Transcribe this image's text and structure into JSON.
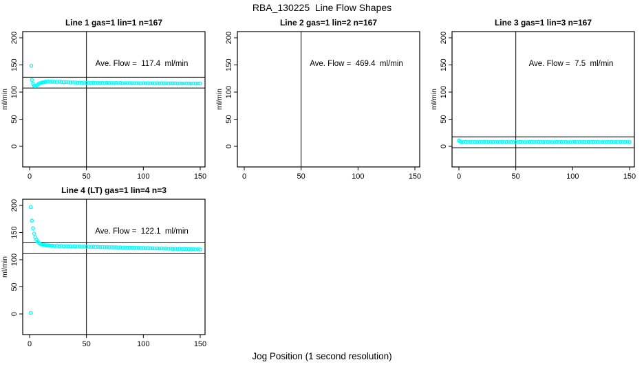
{
  "figure": {
    "title": "RBA_130225  Line Flow Shapes",
    "xlabel": "Jog Position (1 second resolution)",
    "background": "#ffffff",
    "marker_color": "#00FFFF",
    "axis_color": "#000000"
  },
  "chart_data": [
    {
      "type": "scatter",
      "title": "Line 1 gas=1 lin=1 n=167",
      "annotation": "Ave. Flow =  117.4  ml/min",
      "ave_flow": 117.4,
      "ylabel": "ml/min",
      "xlim": [
        0,
        150
      ],
      "ylim": [
        0,
        200
      ],
      "xticks": [
        0,
        50,
        100,
        150
      ],
      "yticks": [
        0,
        50,
        100,
        150,
        200
      ],
      "vline_x": 50,
      "hlines": [
        127.4,
        107.4
      ],
      "points": [
        [
          1.5,
          148.5
        ],
        [
          2,
          122.5
        ],
        [
          3,
          115
        ],
        [
          4,
          111.5
        ],
        [
          5,
          111
        ],
        [
          6,
          112
        ],
        [
          7,
          113.5
        ],
        [
          8,
          115
        ],
        [
          9,
          116.2
        ],
        [
          10,
          117
        ],
        [
          11,
          117.6
        ],
        [
          12,
          118
        ],
        [
          13,
          118.4
        ],
        [
          14,
          119
        ],
        [
          16,
          119.4
        ],
        [
          18,
          119
        ],
        [
          20,
          119.5
        ],
        [
          22,
          119
        ],
        [
          24,
          118.6
        ],
        [
          26,
          119.1
        ],
        [
          28,
          118.6
        ],
        [
          30,
          118.2
        ],
        [
          32,
          118.6
        ],
        [
          34,
          118.1
        ],
        [
          36,
          117.7
        ],
        [
          38,
          118.1
        ],
        [
          40,
          117.6
        ],
        [
          42,
          117.2
        ],
        [
          44,
          117.6
        ],
        [
          46,
          117.1
        ],
        [
          48,
          117.5
        ],
        [
          50,
          117
        ],
        [
          52,
          117.3
        ],
        [
          54,
          116.8
        ],
        [
          56,
          117.2
        ],
        [
          58,
          116.6
        ],
        [
          60,
          117
        ],
        [
          62,
          116.5
        ],
        [
          64,
          117
        ],
        [
          66,
          116.4
        ],
        [
          68,
          116.9
        ],
        [
          70,
          116.5
        ],
        [
          72,
          116.8
        ],
        [
          74,
          116.3
        ],
        [
          76,
          116.8
        ],
        [
          78,
          116.4
        ],
        [
          80,
          116.7
        ],
        [
          82,
          116.2
        ],
        [
          84,
          116.6
        ],
        [
          86,
          116.3
        ],
        [
          88,
          116.7
        ],
        [
          90,
          116.2
        ],
        [
          92,
          116.5
        ],
        [
          94,
          116.1
        ],
        [
          96,
          116.5
        ],
        [
          98,
          116
        ],
        [
          100,
          116.4
        ],
        [
          102,
          116.1
        ],
        [
          104,
          116.5
        ],
        [
          106,
          116
        ],
        [
          108,
          116.3
        ],
        [
          110,
          116
        ],
        [
          112,
          116.4
        ],
        [
          114,
          115.9
        ],
        [
          116,
          116.3
        ],
        [
          118,
          116
        ],
        [
          120,
          116.2
        ],
        [
          122,
          115.8
        ],
        [
          124,
          116.2
        ],
        [
          126,
          115.9
        ],
        [
          128,
          116.1
        ],
        [
          130,
          115.8
        ],
        [
          132,
          116.1
        ],
        [
          134,
          115.7
        ],
        [
          136,
          116
        ],
        [
          138,
          115.8
        ],
        [
          140,
          116
        ],
        [
          142,
          115.6
        ],
        [
          144,
          116
        ],
        [
          146,
          115.7
        ],
        [
          148,
          115.9
        ],
        [
          150,
          115.8
        ]
      ]
    },
    {
      "type": "scatter",
      "title": "Line 2 gas=1 lin=2 n=167",
      "annotation": "Ave. Flow =  469.4  ml/min",
      "ave_flow": 469.4,
      "ylabel": "ml/min",
      "xlim": [
        0,
        150
      ],
      "ylim": [
        0,
        200
      ],
      "xticks": [
        0,
        50,
        100,
        150
      ],
      "yticks": [
        0,
        50,
        100,
        150,
        200
      ],
      "vline_x": 50,
      "hlines": [],
      "points": []
    },
    {
      "type": "scatter",
      "title": "Line 3 gas=1 lin=3 n=167",
      "annotation": "Ave. Flow =  7.5  ml/min",
      "ave_flow": 7.5,
      "ylabel": "ml/min",
      "xlim": [
        0,
        150
      ],
      "ylim": [
        0,
        200
      ],
      "xticks": [
        0,
        50,
        100,
        150
      ],
      "yticks": [
        0,
        50,
        100,
        150,
        200
      ],
      "vline_x": 50,
      "hlines": [
        17.5,
        -2.5
      ],
      "points": [
        [
          0,
          10.5
        ],
        [
          1,
          9.2
        ],
        [
          2,
          8.1
        ],
        [
          4,
          7.8
        ],
        [
          6,
          8.2
        ],
        [
          8,
          7.6
        ],
        [
          10,
          8
        ],
        [
          12,
          7.7
        ],
        [
          14,
          8.1
        ],
        [
          16,
          7.6
        ],
        [
          18,
          8
        ],
        [
          20,
          7.8
        ],
        [
          22,
          8.2
        ],
        [
          24,
          7.6
        ],
        [
          26,
          8
        ],
        [
          28,
          7.7
        ],
        [
          30,
          8.1
        ],
        [
          32,
          7.6
        ],
        [
          34,
          8
        ],
        [
          36,
          7.8
        ],
        [
          38,
          8.1
        ],
        [
          40,
          7.6
        ],
        [
          42,
          8
        ],
        [
          44,
          7.7
        ],
        [
          46,
          8.1
        ],
        [
          48,
          7.6
        ],
        [
          50,
          8
        ],
        [
          52,
          7.8
        ],
        [
          54,
          8.2
        ],
        [
          56,
          7.6
        ],
        [
          58,
          8
        ],
        [
          60,
          7.7
        ],
        [
          62,
          8.1
        ],
        [
          64,
          7.6
        ],
        [
          66,
          8
        ],
        [
          68,
          7.8
        ],
        [
          70,
          8.1
        ],
        [
          72,
          7.6
        ],
        [
          74,
          8
        ],
        [
          76,
          7.7
        ],
        [
          78,
          8.1
        ],
        [
          80,
          7.6
        ],
        [
          82,
          8
        ],
        [
          84,
          7.8
        ],
        [
          86,
          8.2
        ],
        [
          88,
          7.6
        ],
        [
          90,
          8
        ],
        [
          92,
          7.7
        ],
        [
          94,
          8.1
        ],
        [
          96,
          7.6
        ],
        [
          98,
          8
        ],
        [
          100,
          7.8
        ],
        [
          102,
          8.1
        ],
        [
          104,
          7.6
        ],
        [
          106,
          8
        ],
        [
          108,
          7.7
        ],
        [
          110,
          8.1
        ],
        [
          112,
          7.6
        ],
        [
          114,
          8
        ],
        [
          116,
          7.8
        ],
        [
          118,
          8.2
        ],
        [
          120,
          7.6
        ],
        [
          122,
          8
        ],
        [
          124,
          7.7
        ],
        [
          126,
          8.1
        ],
        [
          128,
          7.6
        ],
        [
          130,
          8
        ],
        [
          132,
          7.8
        ],
        [
          134,
          8.1
        ],
        [
          136,
          7.6
        ],
        [
          138,
          8
        ],
        [
          140,
          7.7
        ],
        [
          142,
          8.1
        ],
        [
          144,
          7.6
        ],
        [
          146,
          8
        ],
        [
          148,
          7.8
        ],
        [
          150,
          8
        ]
      ]
    },
    {
      "type": "scatter",
      "title": "Line 4 (LT) gas=1 lin=4 n=3",
      "annotation": "Ave. Flow =  122.1  ml/min",
      "ave_flow": 122.1,
      "ylabel": "ml/min",
      "xlim": [
        0,
        150
      ],
      "ylim": [
        0,
        200
      ],
      "xticks": [
        0,
        50,
        100,
        150
      ],
      "yticks": [
        0,
        50,
        100,
        150,
        200
      ],
      "vline_x": 50,
      "hlines": [
        132.1,
        112.1
      ],
      "points": [
        [
          1,
          197
        ],
        [
          1,
          2
        ],
        [
          2,
          172
        ],
        [
          3,
          158
        ],
        [
          4,
          148
        ],
        [
          5,
          141.5
        ],
        [
          6,
          137
        ],
        [
          7,
          134
        ],
        [
          8,
          131.5
        ],
        [
          9,
          130
        ],
        [
          10,
          128.5
        ],
        [
          11,
          128
        ],
        [
          12,
          127.4
        ],
        [
          13,
          127
        ],
        [
          14,
          126.6
        ],
        [
          15,
          126.2
        ],
        [
          16,
          126.4
        ],
        [
          17,
          125.8
        ],
        [
          18,
          126
        ],
        [
          19,
          125.5
        ],
        [
          20,
          125.8
        ],
        [
          22,
          125.2
        ],
        [
          24,
          125.6
        ],
        [
          26,
          124.9
        ],
        [
          28,
          125.3
        ],
        [
          30,
          124.7
        ],
        [
          32,
          125.1
        ],
        [
          34,
          124.5
        ],
        [
          36,
          124.9
        ],
        [
          38,
          124.3
        ],
        [
          40,
          124.7
        ],
        [
          42,
          124.1
        ],
        [
          44,
          124.5
        ],
        [
          46,
          123.9
        ],
        [
          48,
          124.3
        ],
        [
          50,
          123.8
        ],
        [
          52,
          124.1
        ],
        [
          54,
          123.6
        ],
        [
          56,
          123.9
        ],
        [
          58,
          123.4
        ],
        [
          60,
          123.7
        ],
        [
          62,
          123.2
        ],
        [
          64,
          123.5
        ],
        [
          66,
          123
        ],
        [
          68,
          123.3
        ],
        [
          70,
          122.8
        ],
        [
          72,
          123.1
        ],
        [
          74,
          122.6
        ],
        [
          76,
          122.9
        ],
        [
          78,
          122.4
        ],
        [
          80,
          122.7
        ],
        [
          82,
          122.2
        ],
        [
          84,
          122.5
        ],
        [
          86,
          122
        ],
        [
          88,
          122.3
        ],
        [
          90,
          121.8
        ],
        [
          92,
          122.1
        ],
        [
          94,
          121.6
        ],
        [
          96,
          121.9
        ],
        [
          98,
          121.4
        ],
        [
          100,
          121.7
        ],
        [
          102,
          121.2
        ],
        [
          104,
          121.5
        ],
        [
          106,
          121
        ],
        [
          108,
          121.3
        ],
        [
          110,
          120.8
        ],
        [
          112,
          121.1
        ],
        [
          114,
          120.6
        ],
        [
          116,
          120.9
        ],
        [
          118,
          120.4
        ],
        [
          120,
          120.7
        ],
        [
          122,
          120.2
        ],
        [
          124,
          120.5
        ],
        [
          126,
          120
        ],
        [
          128,
          120.3
        ],
        [
          130,
          119.8
        ],
        [
          132,
          120.1
        ],
        [
          134,
          119.6
        ],
        [
          136,
          119.9
        ],
        [
          138,
          119.4
        ],
        [
          140,
          119.7
        ],
        [
          142,
          119.2
        ],
        [
          144,
          119.5
        ],
        [
          146,
          119
        ],
        [
          148,
          119.2
        ],
        [
          150,
          118.8
        ]
      ]
    }
  ]
}
